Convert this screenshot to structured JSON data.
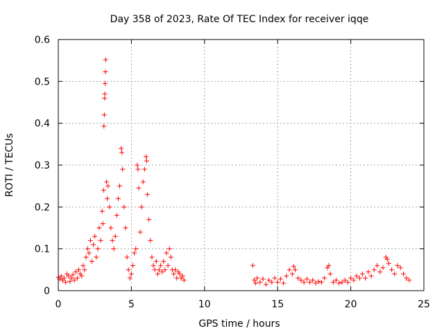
{
  "chart_data": {
    "type": "scatter",
    "title": "Day 358 of 2023, Rate Of TEC Index for receiver iqqe",
    "xlabel": "GPS time / hours",
    "ylabel": "ROTI / TECUs",
    "xlim": [
      0,
      25
    ],
    "ylim": [
      0,
      0.6
    ],
    "xticks": [
      0,
      5,
      10,
      15,
      20,
      25
    ],
    "yticks": [
      0,
      0.1,
      0.2,
      0.3,
      0.4,
      0.5,
      0.6
    ],
    "xtick_labels": [
      "0",
      "5",
      "10",
      "15",
      "20",
      "25"
    ],
    "ytick_labels": [
      "0",
      "0.1",
      "0.2",
      "0.3",
      "0.4",
      "0.5",
      "0.6"
    ],
    "grid": true,
    "marker": "+",
    "color": "#ff0000",
    "series": [
      {
        "points": [
          [
            0.0,
            0.032
          ],
          [
            0.1,
            0.028
          ],
          [
            0.2,
            0.035
          ],
          [
            0.3,
            0.025
          ],
          [
            0.4,
            0.03
          ],
          [
            0.5,
            0.02
          ],
          [
            0.6,
            0.04
          ],
          [
            0.7,
            0.035
          ],
          [
            0.8,
            0.022
          ],
          [
            0.9,
            0.03
          ],
          [
            1.0,
            0.038
          ],
          [
            1.1,
            0.025
          ],
          [
            1.2,
            0.045
          ],
          [
            1.3,
            0.03
          ],
          [
            1.4,
            0.05
          ],
          [
            1.5,
            0.04
          ],
          [
            1.6,
            0.035
          ],
          [
            1.7,
            0.06
          ],
          [
            1.8,
            0.05
          ],
          [
            1.9,
            0.08
          ],
          [
            2.0,
            0.1
          ],
          [
            2.1,
            0.09
          ],
          [
            2.2,
            0.12
          ],
          [
            2.3,
            0.07
          ],
          [
            2.4,
            0.11
          ],
          [
            2.5,
            0.13
          ],
          [
            2.6,
            0.08
          ],
          [
            2.7,
            0.1
          ],
          [
            2.8,
            0.15
          ],
          [
            2.9,
            0.12
          ],
          [
            3.0,
            0.19
          ],
          [
            3.05,
            0.16
          ],
          [
            3.1,
            0.24
          ],
          [
            3.12,
            0.393
          ],
          [
            3.15,
            0.42
          ],
          [
            3.17,
            0.46
          ],
          [
            3.18,
            0.47
          ],
          [
            3.2,
            0.495
          ],
          [
            3.22,
            0.523
          ],
          [
            3.24,
            0.552
          ],
          [
            3.3,
            0.26
          ],
          [
            3.35,
            0.22
          ],
          [
            3.4,
            0.25
          ],
          [
            3.5,
            0.2
          ],
          [
            3.6,
            0.15
          ],
          [
            3.7,
            0.12
          ],
          [
            3.8,
            0.1
          ],
          [
            3.9,
            0.13
          ],
          [
            4.0,
            0.18
          ],
          [
            4.1,
            0.22
          ],
          [
            4.2,
            0.25
          ],
          [
            4.3,
            0.34
          ],
          [
            4.35,
            0.33
          ],
          [
            4.4,
            0.29
          ],
          [
            4.5,
            0.2
          ],
          [
            4.6,
            0.15
          ],
          [
            4.7,
            0.08
          ],
          [
            4.8,
            0.05
          ],
          [
            4.9,
            0.03
          ],
          [
            5.0,
            0.04
          ],
          [
            5.1,
            0.06
          ],
          [
            5.2,
            0.09
          ],
          [
            5.3,
            0.1
          ],
          [
            5.4,
            0.3
          ],
          [
            5.45,
            0.29
          ],
          [
            5.5,
            0.245
          ],
          [
            5.6,
            0.14
          ],
          [
            5.7,
            0.2
          ],
          [
            5.8,
            0.26
          ],
          [
            5.9,
            0.29
          ],
          [
            6.0,
            0.32
          ],
          [
            6.05,
            0.31
          ],
          [
            6.1,
            0.23
          ],
          [
            6.2,
            0.17
          ],
          [
            6.3,
            0.12
          ],
          [
            6.4,
            0.08
          ],
          [
            6.5,
            0.06
          ],
          [
            6.6,
            0.05
          ],
          [
            6.7,
            0.07
          ],
          [
            6.8,
            0.04
          ],
          [
            6.9,
            0.05
          ],
          [
            7.0,
            0.06
          ],
          [
            7.1,
            0.045
          ],
          [
            7.2,
            0.07
          ],
          [
            7.3,
            0.05
          ],
          [
            7.4,
            0.09
          ],
          [
            7.5,
            0.06
          ],
          [
            7.6,
            0.1
          ],
          [
            7.7,
            0.08
          ],
          [
            7.8,
            0.05
          ],
          [
            7.9,
            0.04
          ],
          [
            8.0,
            0.05
          ],
          [
            8.1,
            0.03
          ],
          [
            8.2,
            0.045
          ],
          [
            8.3,
            0.04
          ],
          [
            8.4,
            0.03
          ],
          [
            8.5,
            0.035
          ],
          [
            8.6,
            0.025
          ],
          [
            13.3,
            0.06
          ],
          [
            13.4,
            0.025
          ],
          [
            13.5,
            0.018
          ],
          [
            13.6,
            0.03
          ],
          [
            13.8,
            0.02
          ],
          [
            14.0,
            0.028
          ],
          [
            14.2,
            0.015
          ],
          [
            14.4,
            0.025
          ],
          [
            14.6,
            0.02
          ],
          [
            14.8,
            0.03
          ],
          [
            15.0,
            0.02
          ],
          [
            15.2,
            0.028
          ],
          [
            15.4,
            0.018
          ],
          [
            15.6,
            0.035
          ],
          [
            15.8,
            0.05
          ],
          [
            16.0,
            0.04
          ],
          [
            16.1,
            0.058
          ],
          [
            16.2,
            0.05
          ],
          [
            16.4,
            0.03
          ],
          [
            16.6,
            0.025
          ],
          [
            16.8,
            0.02
          ],
          [
            17.0,
            0.028
          ],
          [
            17.2,
            0.02
          ],
          [
            17.4,
            0.025
          ],
          [
            17.6,
            0.018
          ],
          [
            17.8,
            0.022
          ],
          [
            18.0,
            0.02
          ],
          [
            18.2,
            0.03
          ],
          [
            18.4,
            0.055
          ],
          [
            18.5,
            0.06
          ],
          [
            18.6,
            0.04
          ],
          [
            18.8,
            0.02
          ],
          [
            19.0,
            0.025
          ],
          [
            19.2,
            0.018
          ],
          [
            19.4,
            0.02
          ],
          [
            19.6,
            0.025
          ],
          [
            19.8,
            0.02
          ],
          [
            20.0,
            0.03
          ],
          [
            20.2,
            0.025
          ],
          [
            20.4,
            0.035
          ],
          [
            20.6,
            0.03
          ],
          [
            20.8,
            0.04
          ],
          [
            21.0,
            0.03
          ],
          [
            21.2,
            0.045
          ],
          [
            21.4,
            0.035
          ],
          [
            21.6,
            0.05
          ],
          [
            21.8,
            0.06
          ],
          [
            22.0,
            0.045
          ],
          [
            22.2,
            0.055
          ],
          [
            22.4,
            0.08
          ],
          [
            22.5,
            0.075
          ],
          [
            22.6,
            0.065
          ],
          [
            22.8,
            0.05
          ],
          [
            23.0,
            0.04
          ],
          [
            23.2,
            0.06
          ],
          [
            23.4,
            0.055
          ],
          [
            23.6,
            0.04
          ],
          [
            23.8,
            0.03
          ],
          [
            24.0,
            0.025
          ]
        ]
      }
    ]
  }
}
